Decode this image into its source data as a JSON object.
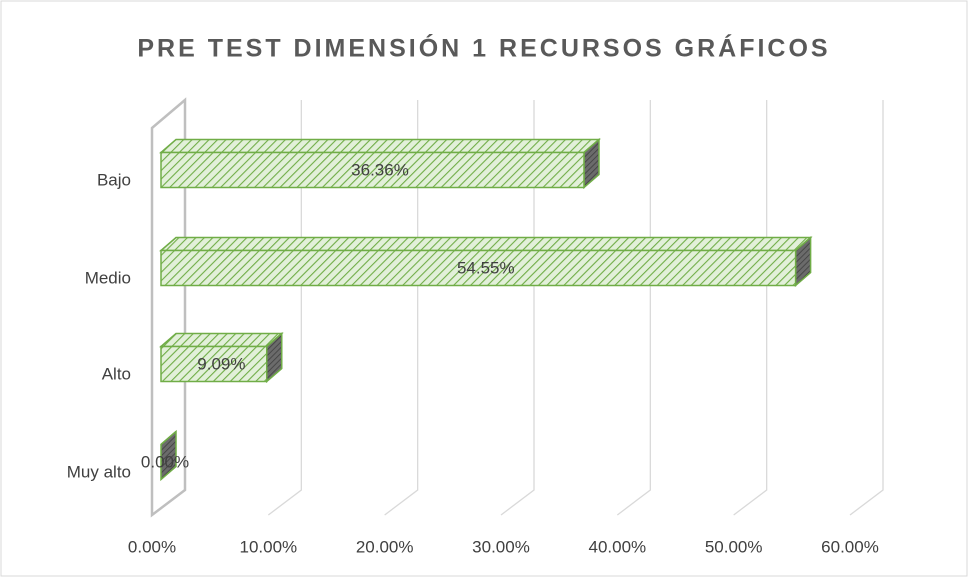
{
  "chart_data": {
    "type": "bar3d_horizontal",
    "title": "PRE TEST DIMENSIÓN 1 RECURSOS GRÁFICOS",
    "categories": [
      "Bajo",
      "Medio",
      "Alto",
      "Muy alto"
    ],
    "values": [
      36.36,
      54.55,
      9.09,
      0
    ],
    "value_labels": [
      "36.36%",
      "54.55%",
      "9.09%",
      "0.00%"
    ],
    "color": "#70ad47",
    "xlim": [
      0,
      60
    ],
    "xticks": [
      {
        "value": 0,
        "label": "0.00%"
      },
      {
        "value": 10,
        "label": "10.00%"
      },
      {
        "value": 20,
        "label": "20.00%"
      },
      {
        "value": 30,
        "label": "30.00%"
      },
      {
        "value": 40,
        "label": "40.00%"
      },
      {
        "value": 50,
        "label": "50.00%"
      },
      {
        "value": 60,
        "label": "60.00%"
      }
    ],
    "grid": true
  }
}
